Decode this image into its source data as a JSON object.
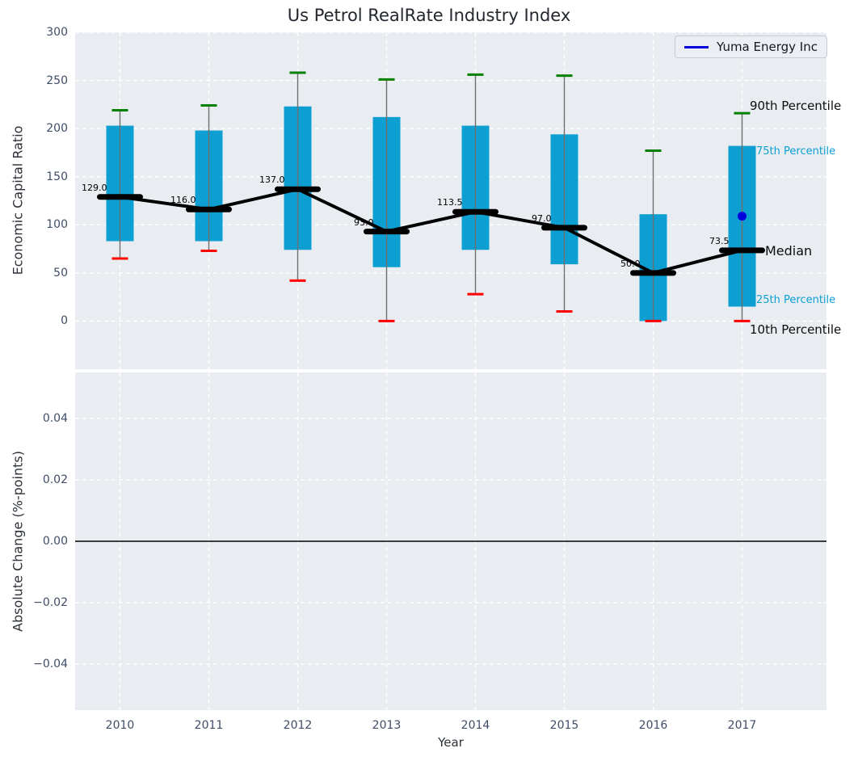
{
  "title": "Us Petrol RealRate Industry Index",
  "legend": {
    "label": "Yuma Energy Inc"
  },
  "annotations": {
    "p90": "90th Percentile",
    "p75": "75th Percentile",
    "median": "Median",
    "p25": "25th Percentile",
    "p10": "10th Percentile"
  },
  "axes": {
    "top": {
      "ylabel": "Economic Capital Ratio",
      "ytick_labels": [
        "0",
        "50",
        "100",
        "150",
        "200",
        "250",
        "300"
      ],
      "ytick_values": [
        0,
        50,
        100,
        150,
        200,
        250,
        300
      ]
    },
    "bottom": {
      "ylabel": "Absolute Change (%-points)",
      "ytick_labels": [
        "0.04",
        "0.02",
        "0.00",
        "−0.02",
        "−0.04"
      ],
      "ytick_values": [
        0.04,
        0.02,
        0,
        -0.02,
        -0.04
      ],
      "xlabel": "Year",
      "xticks": [
        "2010",
        "2011",
        "2012",
        "2013",
        "2014",
        "2015",
        "2016",
        "2017"
      ]
    }
  },
  "colors": {
    "box": "#0d9fd2",
    "p90_cap": "#008000",
    "p10_cap": "#ff0000",
    "median": "#000000",
    "overlay_point": "#0000dd",
    "panel_bg": "#e9edf1",
    "grid": "#ffffff",
    "whisker": "#6e6e6e",
    "zero_line": "#000000"
  },
  "chart_data": [
    {
      "type": "boxplot",
      "title": "Us Petrol RealRate Industry Index",
      "ylabel": "Economic Capital Ratio",
      "ylim": [
        -50,
        300
      ],
      "grid": true,
      "legend_position": "upper right",
      "categories": [
        "2010",
        "2011",
        "2012",
        "2013",
        "2014",
        "2015",
        "2016",
        "2017"
      ],
      "series": [
        {
          "name": "10th percentile",
          "values": [
            65,
            73,
            42,
            0,
            28,
            10,
            0,
            0
          ]
        },
        {
          "name": "25th percentile",
          "values": [
            83,
            83,
            74,
            56,
            74,
            59,
            0,
            15
          ]
        },
        {
          "name": "median",
          "values": [
            129,
            116,
            137,
            93,
            113.5,
            97,
            50,
            73.5
          ]
        },
        {
          "name": "75th percentile",
          "values": [
            203,
            198,
            223,
            212,
            203,
            194,
            111,
            182
          ]
        },
        {
          "name": "90th percentile",
          "values": [
            219,
            224,
            258,
            251,
            256,
            255,
            177,
            216
          ]
        }
      ],
      "median_labels": [
        "129.0",
        "116.0",
        "137.0",
        "93.0",
        "113.5",
        "97.0",
        "50.0",
        "73.5"
      ],
      "overlay_series": {
        "name": "Yuma Energy Inc",
        "points": [
          {
            "x": "2017",
            "y": 109
          }
        ]
      }
    },
    {
      "type": "line",
      "ylabel": "Absolute Change (%-points)",
      "ylim": [
        -0.055,
        0.055
      ],
      "grid": true,
      "zero_line": 0,
      "categories": [
        "2010",
        "2011",
        "2012",
        "2013",
        "2014",
        "2015",
        "2016",
        "2017"
      ],
      "series": []
    }
  ]
}
